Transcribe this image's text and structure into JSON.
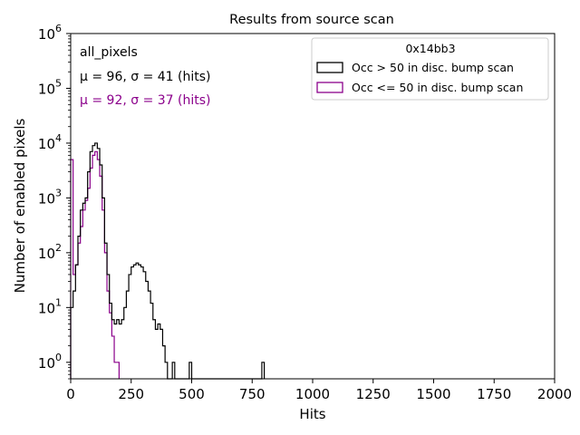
{
  "chart_data": {
    "type": "histogram-step",
    "title": "Results from source scan",
    "xlabel": "Hits",
    "ylabel": "Number of enabled pixels",
    "xlim": [
      0,
      2000
    ],
    "ylim_log": [
      0.5,
      1000000
    ],
    "yscale": "log",
    "bin_width": 10,
    "x_ticks": [
      0,
      250,
      500,
      750,
      1000,
      1250,
      1500,
      1750,
      2000
    ],
    "x_tick_labels": [
      "0",
      "250",
      "500",
      "750",
      "1000",
      "1250",
      "1500",
      "1750",
      "2000"
    ],
    "y_ticks": [
      1,
      10,
      100,
      1000,
      10000,
      100000,
      1000000
    ],
    "y_tick_labels": [
      "10",
      "10",
      "10",
      "10",
      "10",
      "10",
      "10"
    ],
    "y_tick_exponents": [
      "0",
      "1",
      "2",
      "3",
      "4",
      "5",
      "6"
    ],
    "annotations": {
      "title": "all_pixels",
      "stats_black": "μ = 96, σ = 41 (hits)",
      "stats_magenta": "μ = 92, σ = 37 (hits)"
    },
    "legend": {
      "title": "0x14bb3",
      "location": "top-right"
    },
    "series": [
      {
        "name": "Occ > 50 in disc. bump scan",
        "color": "#000000",
        "bins": [
          [
            0,
            10
          ],
          [
            10,
            20
          ],
          [
            20,
            60
          ],
          [
            30,
            200
          ],
          [
            40,
            600
          ],
          [
            50,
            800
          ],
          [
            60,
            1000
          ],
          [
            70,
            3000
          ],
          [
            80,
            7000
          ],
          [
            90,
            9000
          ],
          [
            100,
            10000
          ],
          [
            110,
            8000
          ],
          [
            120,
            4000
          ],
          [
            130,
            1000
          ],
          [
            140,
            150
          ],
          [
            150,
            40
          ],
          [
            160,
            12
          ],
          [
            170,
            6
          ],
          [
            180,
            5
          ],
          [
            190,
            6
          ],
          [
            200,
            5
          ],
          [
            210,
            6
          ],
          [
            220,
            10
          ],
          [
            230,
            20
          ],
          [
            240,
            40
          ],
          [
            250,
            55
          ],
          [
            260,
            60
          ],
          [
            270,
            65
          ],
          [
            280,
            60
          ],
          [
            290,
            55
          ],
          [
            300,
            45
          ],
          [
            310,
            30
          ],
          [
            320,
            20
          ],
          [
            330,
            12
          ],
          [
            340,
            6
          ],
          [
            350,
            4
          ],
          [
            360,
            5
          ],
          [
            370,
            4
          ],
          [
            380,
            2
          ],
          [
            390,
            1
          ],
          [
            420,
            1
          ],
          [
            490,
            1
          ],
          [
            790,
            1
          ]
        ]
      },
      {
        "name": "Occ <= 50 in disc. bump scan",
        "color": "#8b008b",
        "bins": [
          [
            0,
            5000
          ],
          [
            10,
            40
          ],
          [
            20,
            60
          ],
          [
            30,
            150
          ],
          [
            40,
            300
          ],
          [
            50,
            600
          ],
          [
            60,
            900
          ],
          [
            70,
            1500
          ],
          [
            80,
            3500
          ],
          [
            90,
            6000
          ],
          [
            100,
            7000
          ],
          [
            110,
            5000
          ],
          [
            120,
            2500
          ],
          [
            130,
            600
          ],
          [
            140,
            100
          ],
          [
            150,
            20
          ],
          [
            160,
            8
          ],
          [
            170,
            3
          ],
          [
            180,
            1
          ],
          [
            190,
            1
          ]
        ]
      }
    ]
  }
}
